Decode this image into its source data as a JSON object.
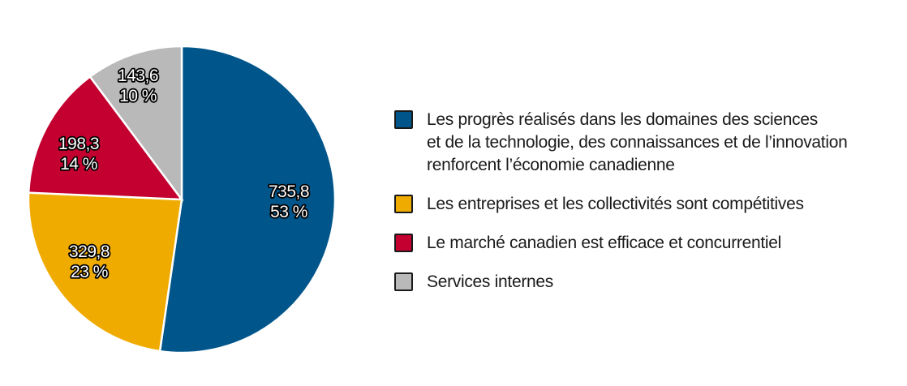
{
  "chart_data": {
    "type": "pie",
    "title": "",
    "unit_hint": "values with percentage share",
    "slices": [
      {
        "label": "Les progrès réalisés dans les domaines des sciences et de la technologie, des connaissances et de l’innovation renforcent l’économie canadienne",
        "value": 735.8,
        "value_text": "735,8",
        "percent": 53,
        "percent_text": "53 %",
        "color": "#00558A"
      },
      {
        "label": "Les entreprises et les collectivités sont compétitives",
        "value": 329.8,
        "value_text": "329,8",
        "percent": 23,
        "percent_text": "23 %",
        "color": "#F0AB00"
      },
      {
        "label": "Le marché canadien est efficace et concurrentiel",
        "value": 198.3,
        "value_text": "198,3",
        "percent": 14,
        "percent_text": "14 %",
        "color": "#C3002F"
      },
      {
        "label": "Services internes",
        "value": 143.6,
        "value_text": "143,6",
        "percent": 10,
        "percent_text": "10 %",
        "color": "#B9B9B9"
      }
    ],
    "start_angle_deg": 0,
    "direction": "clockwise",
    "legend_position": "right"
  },
  "legend": {
    "items": [
      {
        "text": "Les progrès réalisés dans les domaines des sciences\net de la technologie, des connaissances et de l’innovation\nrenforcent l’économie canadienne",
        "color": "#00558A"
      },
      {
        "text": "Les entreprises et les collectivités sont compétitives",
        "color": "#F0AB00"
      },
      {
        "text": "Le marché canadien est efficace et concurrentiel",
        "color": "#C3002F"
      },
      {
        "text": "Services internes",
        "color": "#B9B9B9"
      }
    ]
  }
}
